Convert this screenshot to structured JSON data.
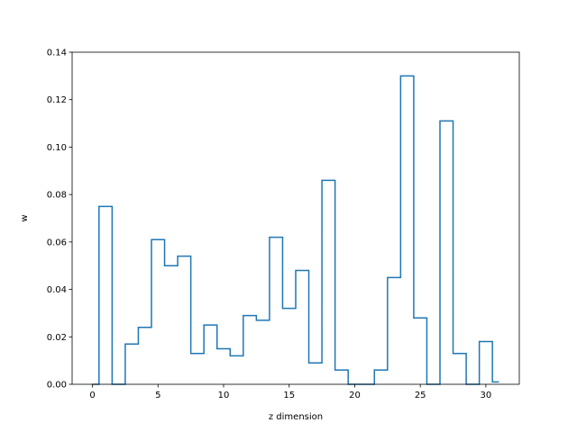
{
  "chart_data": {
    "type": "line",
    "drawstyle": "steps-mid",
    "title": "",
    "xlabel": "z dimension",
    "ylabel": "w",
    "xlim": [
      -1.55,
      32.55
    ],
    "ylim": [
      0,
      0.14
    ],
    "xticks": [
      0,
      5,
      10,
      15,
      20,
      25,
      30
    ],
    "xtick_labels": [
      "0",
      "5",
      "10",
      "15",
      "20",
      "25",
      "30"
    ],
    "yticks": [
      0,
      0.02,
      0.04,
      0.06,
      0.08,
      0.1,
      0.12,
      0.14
    ],
    "ytick_labels": [
      "0.00",
      "0.02",
      "0.04",
      "0.06",
      "0.08",
      "0.10",
      "0.12",
      "0.14"
    ],
    "grid": false,
    "series": [
      {
        "color": "#1f77b4",
        "x": [
          0,
          1,
          2,
          3,
          4,
          5,
          6,
          7,
          8,
          9,
          10,
          11,
          12,
          13,
          14,
          15,
          16,
          17,
          18,
          19,
          20,
          21,
          22,
          23,
          24,
          25,
          26,
          27,
          28,
          29,
          30,
          31
        ],
        "values": [
          0.0,
          0.075,
          0.0,
          0.017,
          0.024,
          0.061,
          0.05,
          0.054,
          0.013,
          0.025,
          0.015,
          0.012,
          0.029,
          0.027,
          0.062,
          0.032,
          0.048,
          0.009,
          0.086,
          0.006,
          0.0,
          0.0,
          0.006,
          0.045,
          0.13,
          0.028,
          0.0,
          0.111,
          0.013,
          0.0,
          0.018,
          0.001
        ]
      }
    ]
  }
}
